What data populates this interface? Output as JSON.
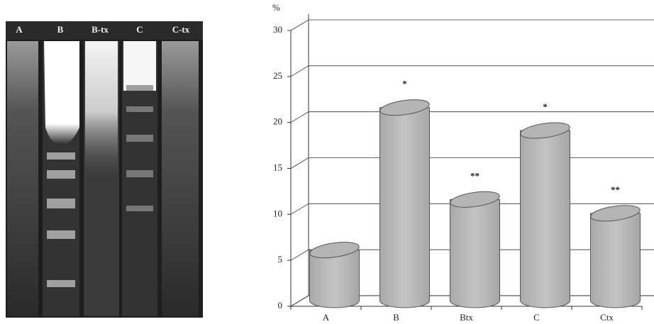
{
  "gel": {
    "lanes": [
      "A",
      "B",
      "B-tx",
      "C",
      "C-tx"
    ]
  },
  "chart_data": {
    "type": "bar",
    "y_label": "%",
    "categories": [
      "A",
      "B",
      "Btx",
      "C",
      "Ctx"
    ],
    "values": [
      5.5,
      21,
      11,
      18.5,
      9.5
    ],
    "significance": [
      null,
      "*",
      "**",
      "*",
      "**"
    ],
    "color": "#b8b8b8",
    "ylim": [
      0,
      30
    ],
    "yticks": [
      0,
      5,
      10,
      15,
      20,
      25,
      30
    ],
    "grid": true
  }
}
